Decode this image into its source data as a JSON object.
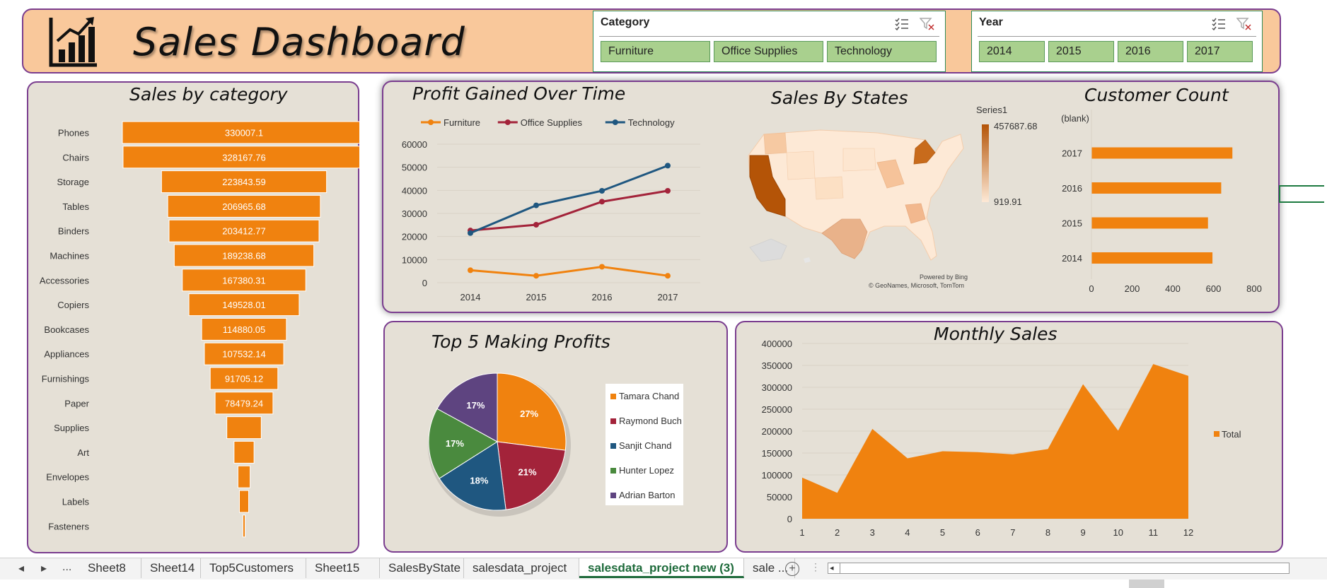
{
  "header": {
    "title": "Sales Dashboard",
    "logo_icon": "bar-chart-growth-icon"
  },
  "category_slicer": {
    "title": "Category",
    "items": [
      "Furniture",
      "Office Supplies",
      "Technology"
    ]
  },
  "year_slicer": {
    "title": "Year",
    "items": [
      "2014",
      "2015",
      "2016",
      "2017"
    ]
  },
  "sales_by_category": {
    "title": "Sales by category",
    "chart_data": {
      "type": "bar",
      "categories": [
        "Phones",
        "Chairs",
        "Storage",
        "Tables",
        "Binders",
        "Machines",
        "Accessories",
        "Copiers",
        "Bookcases",
        "Appliances",
        "Furnishings",
        "Paper",
        "Supplies",
        "Art",
        "Envelopes",
        "Labels",
        "Fasteners"
      ],
      "values": [
        330007.1,
        328167.76,
        223843.59,
        206965.68,
        203412.77,
        189238.68,
        167380.31,
        149528.01,
        114880.05,
        107532.14,
        91705.12,
        78479.24,
        46673.54,
        27118.79,
        16476.4,
        12486.31,
        3024.28
      ],
      "labels": [
        "330007.1",
        "328167.76",
        "223843.59",
        "206965.68",
        "203412.77",
        "189238.68",
        "167380.31",
        "149528.01",
        "114880.05",
        "107532.14",
        "91705.12",
        "78479.24",
        "",
        "",
        "",
        "",
        ""
      ],
      "color": "#f0820f"
    }
  },
  "profit_over_time": {
    "title": "Profit Gained Over Time",
    "chart_data": {
      "type": "line",
      "x": [
        "2014",
        "2015",
        "2016",
        "2017"
      ],
      "y_ticks": [
        "0",
        "10000",
        "20000",
        "30000",
        "40000",
        "50000",
        "60000"
      ],
      "ylim": [
        0,
        60000
      ],
      "series": [
        {
          "name": "Furniture",
          "values": [
            5400,
            3000,
            6900,
            3000
          ],
          "color": "#f0820f"
        },
        {
          "name": "Office Supplies",
          "values": [
            22600,
            25100,
            35100,
            39800
          ],
          "color": "#a3233a"
        },
        {
          "name": "Technology",
          "values": [
            21500,
            33500,
            39800,
            50700
          ],
          "color": "#1f5780"
        }
      ]
    }
  },
  "sales_by_states": {
    "title": "Sales By States",
    "legend_series": "Series1",
    "legend_max": "457687.68",
    "legend_min": "919.91",
    "credit1": "Powered by Bing",
    "credit2": "© GeoNames, Microsoft, TomTom"
  },
  "customer_count": {
    "title": "Customer Count",
    "chart_data": {
      "type": "bar",
      "categories": [
        "(blank)",
        "2017",
        "2016",
        "2015",
        "2014"
      ],
      "values": [
        0,
        693,
        638,
        573,
        595
      ],
      "x_ticks": [
        "0",
        "200",
        "400",
        "600",
        "800"
      ],
      "xlim": [
        0,
        800
      ],
      "color": "#f0820f"
    }
  },
  "top5_profits": {
    "title": "Top 5 Making Profits",
    "chart_data": {
      "type": "pie",
      "slices": [
        {
          "name": "Tamara Chand",
          "percent": 27,
          "label": "27%",
          "color": "#f0820f"
        },
        {
          "name": "Raymond Buch",
          "percent": 21,
          "label": "21%",
          "color": "#a3233a"
        },
        {
          "name": "Sanjit Chand",
          "percent": 18,
          "label": "18%",
          "color": "#1f5780"
        },
        {
          "name": "Hunter Lopez",
          "percent": 17,
          "label": "17%",
          "color": "#4a8a3e"
        },
        {
          "name": "Adrian Barton",
          "percent": 17,
          "label": "17%",
          "color": "#5e4480"
        }
      ]
    }
  },
  "monthly_sales": {
    "title": "Monthly Sales",
    "chart_data": {
      "type": "area",
      "x": [
        "1",
        "2",
        "3",
        "4",
        "5",
        "6",
        "7",
        "8",
        "9",
        "10",
        "11",
        "12"
      ],
      "values": [
        94000,
        59000,
        205000,
        138000,
        154000,
        152000,
        147000,
        159000,
        307000,
        201000,
        353000,
        326000
      ],
      "y_ticks": [
        "0",
        "50000",
        "100000",
        "150000",
        "200000",
        "250000",
        "300000",
        "350000",
        "400000"
      ],
      "ylim": [
        0,
        400000
      ],
      "series_name": "Total",
      "color": "#f0820f"
    }
  },
  "sheet_tabs": {
    "nav_more": "...",
    "tabs": [
      "Sheet8",
      "Sheet14",
      "Top5Customers",
      "Sheet15",
      "SalesByState",
      "salesdata_project",
      "salesdata_project new (3)",
      "sale ..."
    ],
    "active_index": 6
  }
}
